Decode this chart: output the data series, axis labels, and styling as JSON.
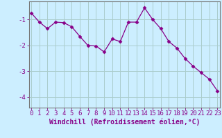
{
  "x": [
    0,
    1,
    2,
    3,
    4,
    5,
    6,
    7,
    8,
    9,
    10,
    11,
    12,
    13,
    14,
    15,
    16,
    17,
    18,
    19,
    20,
    21,
    22,
    23
  ],
  "y": [
    -0.75,
    -1.1,
    -1.35,
    -1.1,
    -1.12,
    -1.28,
    -1.65,
    -2.0,
    -2.02,
    -2.25,
    -1.75,
    -1.85,
    -1.1,
    -1.1,
    -0.55,
    -1.0,
    -1.35,
    -1.85,
    -2.1,
    -2.5,
    -2.8,
    -3.05,
    -3.3,
    -3.75
  ],
  "line_color": "#880088",
  "marker": "D",
  "marker_size": 2.5,
  "bg_color": "#cceeff",
  "grid_color": "#aacccc",
  "xlabel": "Windchill (Refroidissement éolien,°C)",
  "xlabel_fontsize": 7,
  "xtick_labels": [
    "0",
    "1",
    "2",
    "3",
    "4",
    "5",
    "6",
    "7",
    "8",
    "9",
    "10",
    "11",
    "12",
    "13",
    "14",
    "15",
    "16",
    "17",
    "18",
    "19",
    "20",
    "21",
    "22",
    "23"
  ],
  "yticks": [
    -1,
    -2,
    -3,
    -4
  ],
  "ylim": [
    -4.4,
    -0.3
  ],
  "xlim": [
    -0.3,
    23.3
  ],
  "tick_fontsize": 6.5,
  "spine_color": "#777777"
}
